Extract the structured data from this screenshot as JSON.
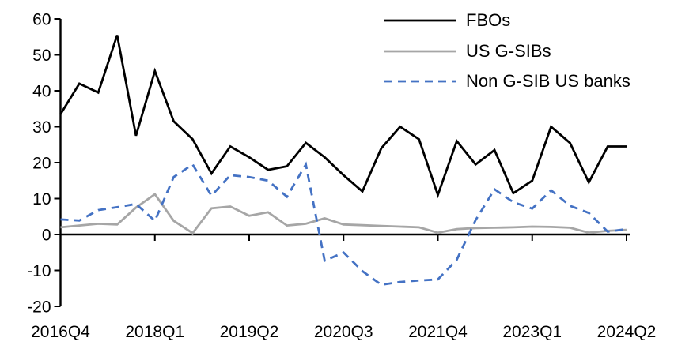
{
  "chart_data": {
    "type": "line",
    "categories": [
      "2016Q4",
      "2017Q1",
      "2017Q2",
      "2017Q3",
      "2017Q4",
      "2018Q1",
      "2018Q2",
      "2018Q3",
      "2018Q4",
      "2019Q1",
      "2019Q2",
      "2019Q3",
      "2019Q4",
      "2020Q1",
      "2020Q2",
      "2020Q3",
      "2020Q4",
      "2021Q1",
      "2021Q2",
      "2021Q3",
      "2021Q4",
      "2022Q1",
      "2022Q2",
      "2022Q3",
      "2022Q4",
      "2023Q1",
      "2023Q2",
      "2023Q3",
      "2023Q4",
      "2024Q1",
      "2024Q2"
    ],
    "x_tick_labels": [
      "2016Q4",
      "2018Q1",
      "2019Q2",
      "2020Q3",
      "2021Q4",
      "2023Q1",
      "2024Q2"
    ],
    "y_tick_labels": [
      "60",
      "50",
      "40",
      "30",
      "20",
      "10",
      "0",
      "-10",
      "-20"
    ],
    "ylim": [
      -20,
      60
    ],
    "y_step": 10,
    "grid": false,
    "legend_position": "top-right",
    "axis_color": "#000000",
    "series": [
      {
        "name": "FBOs",
        "color": "#000000",
        "dashed": false,
        "values": [
          33.5,
          42,
          39.5,
          55.5,
          27.5,
          45.5,
          31.5,
          26.5,
          17,
          24.5,
          21.5,
          18,
          19,
          25.5,
          21.5,
          16.5,
          12,
          24,
          30,
          26.5,
          11,
          26,
          19.5,
          23.5,
          11.5,
          15,
          30,
          25.5,
          14.5,
          24.5,
          24.5
        ]
      },
      {
        "name": "US G-SIBs",
        "color": "#A6A6A6",
        "dashed": false,
        "values": [
          2,
          2.5,
          3,
          2.8,
          7.5,
          11.2,
          3.8,
          0.4,
          7.3,
          7.8,
          5.2,
          6.2,
          2.5,
          3,
          4.5,
          2.8,
          2.6,
          2.4,
          2.2,
          2,
          0.5,
          1.5,
          1.8,
          1.9,
          2,
          2.2,
          2.1,
          1.9,
          0.5,
          1,
          1.3
        ]
      },
      {
        "name": "Non G-SIB US banks",
        "color": "#4472C4",
        "dashed": true,
        "values": [
          4.2,
          3.9,
          6.8,
          7.6,
          8.5,
          3.8,
          16,
          19.5,
          10.8,
          16.5,
          16,
          15,
          10.5,
          19.5,
          -7.3,
          -5,
          -10.2,
          -14,
          -13.2,
          -12.8,
          -12.5,
          -7,
          4,
          12.6,
          9,
          7.2,
          12.3,
          8,
          6,
          0.8,
          1.5
        ]
      }
    ]
  }
}
